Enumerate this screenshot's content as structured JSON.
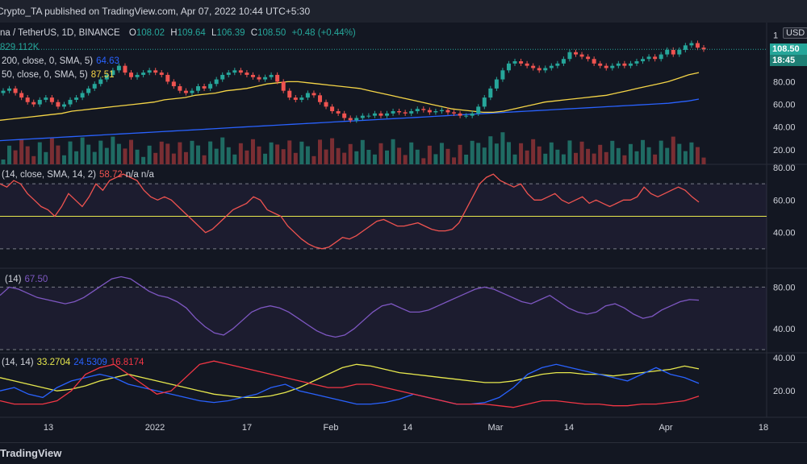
{
  "header": {
    "publisher": "Crypto_TA published on TradingView.com, Apr 07, 2022 10:44 UTC+5:30"
  },
  "symbol": {
    "name": "na / TetherUS, 1D, BINANCE",
    "o_label": "O",
    "o": "108.02",
    "h_label": "H",
    "h": "109.64",
    "l_label": "L",
    "l": "106.39",
    "c_label": "C",
    "c": "108.50",
    "change": "+0.48 (+0.44%)",
    "volume": "829.112K",
    "currency": "USD",
    "price_tag": "108.50",
    "countdown": "18:45"
  },
  "indicators": {
    "ma200": {
      "label": "200, close, 0, SMA, 5)",
      "value": "64.63"
    },
    "ma50": {
      "label": "50, close, 0, SMA, 5)",
      "value": "87.51"
    },
    "rsi": {
      "label": "(14, close, SMA, 14, 2)",
      "value": "58.72",
      "extra": "n/a  n/a"
    },
    "stoch": {
      "label": "(14)",
      "value": "67.50"
    },
    "dmi": {
      "label": "(14, 14)",
      "adx": "33.2704",
      "plus_di": "24.5309",
      "minus_di": "16.8174"
    }
  },
  "colors": {
    "up": "#26a69a",
    "down": "#ef5350",
    "ma50": "#f5d547",
    "ma200": "#2962ff",
    "rsi": "#ef5350",
    "stoch": "#7e57c2",
    "adx": "#e7e84d",
    "plus_di": "#2962ff",
    "minus_di": "#f23645"
  },
  "footer": {
    "brand": "TradingView"
  },
  "chart_data": [
    {
      "type": "candlestick",
      "title": "na / TetherUS, 1D, BINANCE",
      "ylim": [
        10,
        125
      ],
      "price_ticks": [
        "1",
        "80.00",
        "60.00",
        "40.00",
        "20.00"
      ],
      "x_ticks": [
        "13",
        "2022",
        "17",
        "Feb",
        "14",
        "Mar",
        "14",
        "Apr",
        "18"
      ],
      "close": [
        72,
        74,
        70,
        66,
        62,
        60,
        64,
        66,
        62,
        58,
        60,
        64,
        66,
        70,
        74,
        78,
        82,
        86,
        90,
        94,
        88,
        84,
        86,
        88,
        90,
        88,
        86,
        80,
        76,
        72,
        70,
        72,
        76,
        74,
        78,
        82,
        86,
        88,
        90,
        88,
        86,
        84,
        82,
        84,
        86,
        80,
        72,
        66,
        64,
        66,
        70,
        68,
        62,
        58,
        54,
        52,
        48,
        46,
        48,
        50,
        50,
        52,
        50,
        52,
        54,
        53,
        52,
        54,
        56,
        55,
        53,
        54,
        55,
        53,
        52,
        50,
        50,
        52,
        58,
        66,
        74,
        82,
        90,
        96,
        98,
        96,
        94,
        92,
        90,
        92,
        94,
        96,
        100,
        106,
        104,
        102,
        100,
        96,
        94,
        92,
        94,
        96,
        94,
        96,
        98,
        100,
        102,
        100,
        104,
        108,
        104,
        108,
        112,
        114,
        110,
        108.5
      ],
      "ma50": [
        46,
        47,
        48,
        49,
        50,
        51,
        52,
        54,
        55,
        56,
        57,
        58,
        59,
        60,
        61,
        62,
        64,
        65,
        66,
        68,
        69,
        70,
        72,
        73,
        74,
        76,
        78,
        79,
        80,
        80,
        79,
        78,
        77,
        76,
        75,
        74,
        72,
        70,
        68,
        66,
        64,
        62,
        60,
        58,
        56,
        55,
        54,
        53,
        53,
        54,
        56,
        58,
        60,
        62,
        63,
        64,
        65,
        66,
        67,
        68,
        70,
        72,
        74,
        76,
        78,
        80,
        83,
        86,
        88
      ],
      "ma200": [
        28,
        28.5,
        29,
        29.5,
        30,
        30.5,
        31,
        31.5,
        32,
        32.5,
        33,
        33.5,
        34,
        34.5,
        35,
        35.5,
        36,
        36.5,
        37,
        37.5,
        38,
        38.5,
        39,
        39.5,
        40,
        40.5,
        41,
        41.5,
        42,
        42.5,
        43,
        43.5,
        44,
        44.5,
        45,
        45.5,
        46,
        46.5,
        47,
        47.5,
        48,
        48.5,
        49,
        49.5,
        50,
        50.5,
        51,
        51.5,
        52,
        52.5,
        53,
        53.5,
        54,
        54.5,
        55,
        55.5,
        56,
        56.5,
        57,
        57.5,
        58,
        58.5,
        59,
        59.5,
        60,
        60.5,
        61,
        62,
        63,
        64.63
      ]
    },
    {
      "type": "line",
      "name": "RSI",
      "ylim": [
        20,
        80
      ],
      "ticks": [
        "80.00",
        "60.00",
        "40.00"
      ],
      "values": [
        70,
        68,
        72,
        70,
        64,
        60,
        56,
        54,
        50,
        56,
        64,
        60,
        56,
        62,
        70,
        66,
        72,
        74,
        76,
        74,
        72,
        66,
        62,
        60,
        62,
        60,
        56,
        52,
        48,
        44,
        40,
        42,
        46,
        50,
        54,
        56,
        58,
        62,
        60,
        54,
        52,
        50,
        44,
        40,
        36,
        33,
        31,
        30,
        31,
        34,
        37,
        36,
        38,
        41,
        44,
        47,
        48,
        46,
        44,
        44,
        45,
        46,
        44,
        42,
        41,
        41,
        42,
        46,
        54,
        62,
        70,
        74,
        76,
        72,
        70,
        68,
        70,
        64,
        60,
        60,
        62,
        64,
        60,
        58,
        60,
        62,
        58,
        60,
        58,
        56,
        58,
        60,
        60,
        62,
        68,
        64,
        62,
        64,
        66,
        68,
        66,
        62,
        58.72
      ]
    },
    {
      "type": "line",
      "name": "Stoch",
      "ylim": [
        20,
        95
      ],
      "ticks": [
        "80.00",
        "40.00"
      ],
      "values": [
        72,
        80,
        78,
        74,
        70,
        68,
        66,
        64,
        66,
        70,
        76,
        82,
        88,
        90,
        88,
        82,
        76,
        72,
        70,
        66,
        60,
        50,
        42,
        36,
        34,
        40,
        48,
        56,
        60,
        62,
        60,
        56,
        50,
        44,
        38,
        34,
        32,
        34,
        40,
        48,
        56,
        62,
        64,
        60,
        56,
        56,
        58,
        62,
        66,
        70,
        74,
        78,
        80,
        78,
        74,
        70,
        66,
        64,
        68,
        72,
        66,
        60,
        56,
        54,
        56,
        62,
        64,
        60,
        54,
        50,
        52,
        58,
        62,
        66,
        68,
        67.5
      ]
    },
    {
      "type": "line",
      "name": "DMI",
      "ylim": [
        5,
        42
      ],
      "ticks": [
        "40.00",
        "20.00"
      ],
      "series": [
        {
          "name": "ADX",
          "values": [
            28,
            26,
            24,
            22,
            20,
            21,
            23,
            26,
            28,
            30,
            28,
            26,
            24,
            22,
            20,
            18,
            17,
            16,
            16,
            17,
            19,
            22,
            26,
            30,
            34,
            36,
            35,
            33,
            31,
            30,
            29,
            28,
            27,
            26,
            25,
            25,
            26,
            28,
            30,
            31,
            31,
            30,
            30,
            29,
            30,
            31,
            32,
            33,
            35,
            33.27
          ]
        },
        {
          "name": "+DI",
          "values": [
            20,
            22,
            18,
            16,
            22,
            26,
            28,
            30,
            28,
            24,
            22,
            20,
            18,
            16,
            14,
            13,
            14,
            16,
            18,
            22,
            24,
            20,
            18,
            16,
            14,
            12,
            12,
            13,
            15,
            18,
            16,
            14,
            12,
            12,
            13,
            16,
            22,
            30,
            34,
            36,
            34,
            32,
            30,
            28,
            26,
            30,
            34,
            30,
            28,
            24.53
          ]
        },
        {
          "name": "-DI",
          "values": [
            14,
            12,
            12,
            12,
            14,
            20,
            30,
            34,
            36,
            30,
            24,
            18,
            20,
            28,
            36,
            38,
            36,
            34,
            32,
            30,
            28,
            26,
            24,
            22,
            22,
            24,
            24,
            22,
            20,
            18,
            16,
            14,
            12,
            12,
            12,
            11,
            10,
            12,
            14,
            14,
            13,
            12,
            12,
            11,
            11,
            12,
            12,
            13,
            14,
            16.82
          ]
        }
      ]
    }
  ]
}
